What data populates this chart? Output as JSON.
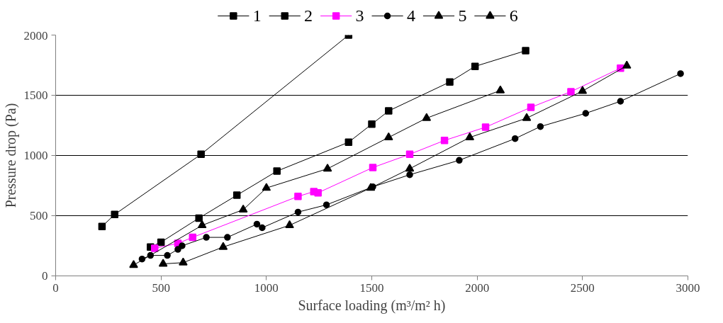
{
  "chart_data": {
    "type": "line",
    "xlabel": "Surface loading (m³/m² h)",
    "ylabel": "Pressure drop (Pa)",
    "xlim": [
      0,
      3000
    ],
    "xticks": [
      0,
      500,
      1000,
      1500,
      2000,
      2500,
      3000
    ],
    "ylim": [
      0,
      2000
    ],
    "yticks": [
      0,
      500,
      1000,
      1500,
      2000
    ],
    "grid": "y",
    "legend": "top",
    "series": [
      {
        "name": "1",
        "color": "#000000",
        "marker": "square",
        "x": [
          220,
          280,
          690,
          1390
        ],
        "values": [
          410,
          510,
          1010,
          2000
        ]
      },
      {
        "name": "2",
        "color": "#000000",
        "marker": "square",
        "x": [
          450,
          500,
          680,
          860,
          1050,
          1390,
          1500,
          1580,
          1870,
          1990,
          2230
        ],
        "values": [
          240,
          280,
          480,
          670,
          870,
          1110,
          1260,
          1370,
          1610,
          1740,
          1870
        ]
      },
      {
        "name": "3",
        "color": "#ff00ff",
        "marker": "square",
        "x": [
          470,
          580,
          650,
          1150,
          1225,
          1245,
          1505,
          1680,
          1845,
          2040,
          2255,
          2445,
          2680
        ],
        "values": [
          230,
          270,
          320,
          660,
          700,
          690,
          900,
          1010,
          1125,
          1235,
          1400,
          1530,
          1725
        ]
      },
      {
        "name": "4",
        "color": "#000000",
        "marker": "circle",
        "x": [
          410,
          450,
          530,
          580,
          600,
          715,
          815,
          955,
          980,
          1150,
          1285,
          1505,
          1680,
          1915,
          2180,
          2300,
          2515,
          2680,
          2965
        ],
        "values": [
          140,
          170,
          170,
          220,
          250,
          320,
          320,
          430,
          400,
          530,
          590,
          740,
          840,
          960,
          1140,
          1240,
          1350,
          1450,
          1680
        ]
      },
      {
        "name": "5",
        "color": "#000000",
        "marker": "triangle",
        "x": [
          370,
          695,
          890,
          1000,
          1290,
          1580,
          1760,
          2110
        ],
        "values": [
          90,
          420,
          550,
          730,
          890,
          1150,
          1310,
          1540
        ]
      },
      {
        "name": "6",
        "color": "#000000",
        "marker": "triangle",
        "x": [
          510,
          605,
          795,
          1110,
          1495,
          1680,
          1965,
          2235,
          2500,
          2710
        ],
        "values": [
          100,
          110,
          240,
          420,
          730,
          890,
          1150,
          1310,
          1535,
          1745
        ]
      }
    ]
  }
}
